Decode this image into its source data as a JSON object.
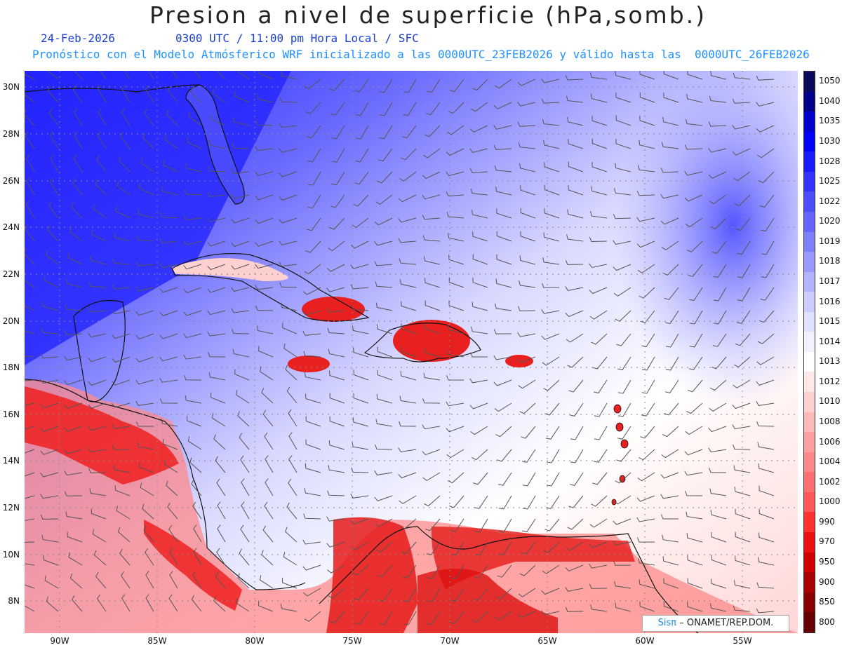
{
  "header": {
    "title": "Presion a nivel de superficie (hPa,somb.)",
    "date": "24-Feb-2026",
    "time": "0300 UTC / 11:00 pm Hora Local / SFC",
    "forecast": "Pronóstico con el Modelo Atmósferico WRF inicializado a las 0000UTC_23FEB2026 y válido hasta las  0000UTC_26FEB2026"
  },
  "axes": {
    "lat_labels": [
      "30N",
      "28N",
      "26N",
      "24N",
      "22N",
      "20N",
      "18N",
      "16N",
      "14N",
      "12N",
      "10N",
      "8N"
    ],
    "lon_labels": [
      "90W",
      "85W",
      "80W",
      "75W",
      "70W",
      "65W",
      "60W",
      "55W"
    ]
  },
  "colorbar": {
    "levels": [
      "1050",
      "1040",
      "1035",
      "1030",
      "1028",
      "1025",
      "1022",
      "1020",
      "1019",
      "1018",
      "1017",
      "1016",
      "1015",
      "1014",
      "1013",
      "1012",
      "1010",
      "1008",
      "1006",
      "1004",
      "1002",
      "1000",
      "990",
      "970",
      "950",
      "900",
      "850",
      "800"
    ],
    "colors": [
      "#0a0a5c",
      "#00008b",
      "#0000cd",
      "#0000ff",
      "#1a1aff",
      "#3333ff",
      "#4d4dff",
      "#6666ff",
      "#8080ff",
      "#9999ff",
      "#b3b3ff",
      "#ccccff",
      "#e0e0ff",
      "#f2f2ff",
      "#ffffff",
      "#ffe8e8",
      "#ffd0d0",
      "#ffb8b8",
      "#ffa0a0",
      "#ff8888",
      "#ff7070",
      "#ff5858",
      "#ff3030",
      "#ee1010",
      "#d00000",
      "#aa0000",
      "#880000",
      "#660000"
    ]
  },
  "credit": {
    "logo": "Sisπ",
    "text": "– ONAMET/REP.DOM."
  }
}
